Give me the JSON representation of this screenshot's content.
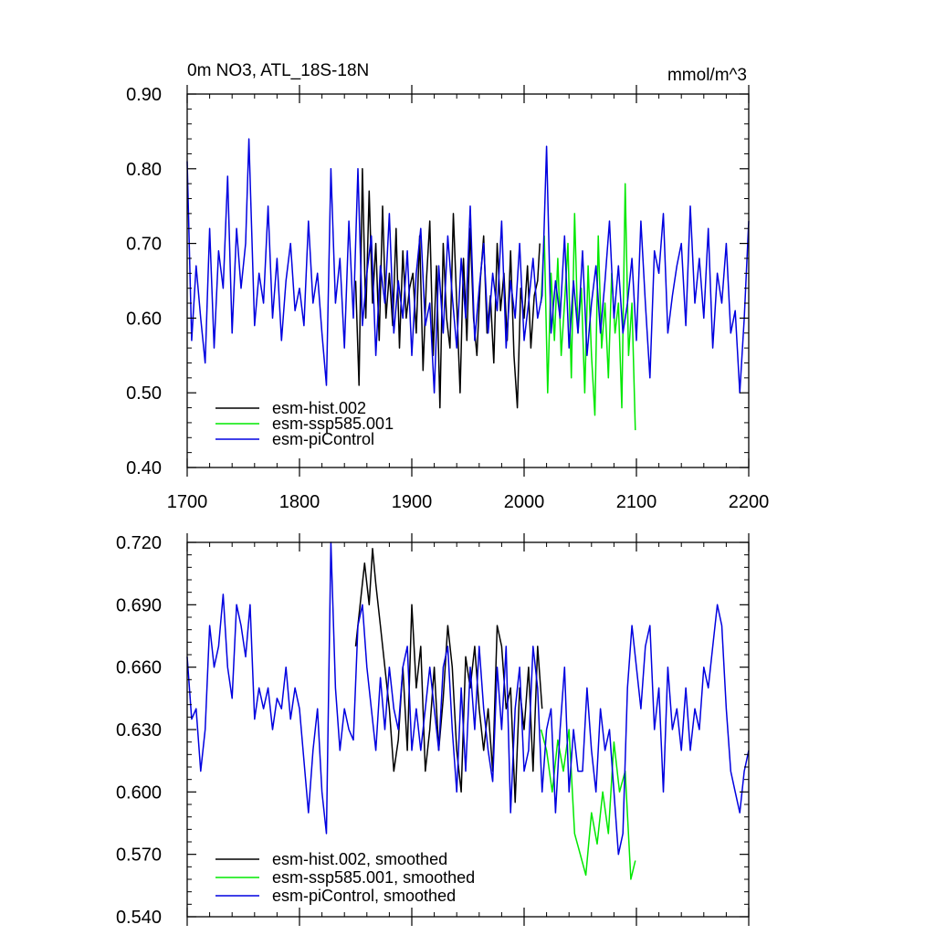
{
  "chart_data": [
    {
      "type": "line",
      "title": "0m NO3, ATL_18S-18N",
      "units": "mmol/m^3",
      "xlabel": "",
      "ylabel": "",
      "xlim": [
        1700,
        2200
      ],
      "ylim": [
        0.4,
        0.9
      ],
      "xticks": [
        "1700",
        "1800",
        "1900",
        "2000",
        "2100",
        "2200"
      ],
      "yticks": [
        "0.40",
        "0.50",
        "0.60",
        "0.70",
        "0.80",
        "0.90"
      ],
      "legend_position": "bottom-left",
      "series": [
        {
          "name": "esm-hist.002",
          "color": "#000000",
          "x": [
            1850,
            1853,
            1856,
            1859,
            1862,
            1865,
            1868,
            1871,
            1874,
            1877,
            1880,
            1883,
            1886,
            1889,
            1892,
            1895,
            1898,
            1901,
            1904,
            1907,
            1910,
            1913,
            1916,
            1919,
            1922,
            1925,
            1928,
            1931,
            1934,
            1937,
            1940,
            1943,
            1946,
            1949,
            1952,
            1955,
            1958,
            1961,
            1964,
            1967,
            1970,
            1973,
            1976,
            1979,
            1982,
            1985,
            1988,
            1991,
            1994,
            1997,
            2000,
            2003,
            2006,
            2009,
            2012,
            2014
          ],
          "y": [
            0.65,
            0.51,
            0.8,
            0.6,
            0.77,
            0.62,
            0.7,
            0.57,
            0.75,
            0.6,
            0.66,
            0.59,
            0.72,
            0.56,
            0.69,
            0.6,
            0.64,
            0.66,
            0.58,
            0.71,
            0.53,
            0.65,
            0.73,
            0.55,
            0.67,
            0.48,
            0.7,
            0.6,
            0.56,
            0.74,
            0.62,
            0.5,
            0.68,
            0.57,
            0.72,
            0.6,
            0.55,
            0.65,
            0.71,
            0.58,
            0.63,
            0.54,
            0.7,
            0.61,
            0.66,
            0.57,
            0.69,
            0.55,
            0.48,
            0.64,
            0.6,
            0.67,
            0.56,
            0.63,
            0.65,
            0.7
          ]
        },
        {
          "name": "esm-ssp585.001",
          "color": "#00e800",
          "x": [
            2015,
            2018,
            2021,
            2024,
            2027,
            2030,
            2033,
            2036,
            2039,
            2042,
            2045,
            2048,
            2051,
            2054,
            2057,
            2060,
            2063,
            2066,
            2069,
            2072,
            2075,
            2078,
            2081,
            2084,
            2087,
            2090,
            2093,
            2096,
            2099
          ],
          "y": [
            0.62,
            0.71,
            0.5,
            0.66,
            0.57,
            0.68,
            0.55,
            0.62,
            0.7,
            0.52,
            0.74,
            0.58,
            0.64,
            0.5,
            0.67,
            0.55,
            0.47,
            0.71,
            0.56,
            0.62,
            0.52,
            0.66,
            0.58,
            0.62,
            0.48,
            0.78,
            0.55,
            0.62,
            0.45
          ]
        },
        {
          "name": "esm-piControl",
          "color": "#0000e0",
          "x": [
            1700,
            1704,
            1708,
            1712,
            1716,
            1720,
            1724,
            1728,
            1732,
            1736,
            1740,
            1744,
            1748,
            1752,
            1755,
            1760,
            1764,
            1768,
            1772,
            1776,
            1780,
            1784,
            1788,
            1792,
            1796,
            1800,
            1804,
            1808,
            1812,
            1816,
            1820,
            1824,
            1828,
            1832,
            1836,
            1840,
            1844,
            1848,
            1852,
            1856,
            1860,
            1864,
            1868,
            1872,
            1876,
            1880,
            1884,
            1888,
            1892,
            1896,
            1900,
            1904,
            1908,
            1912,
            1916,
            1920,
            1924,
            1928,
            1932,
            1936,
            1940,
            1944,
            1948,
            1952,
            1956,
            1960,
            1964,
            1968,
            1972,
            1976,
            1980,
            1984,
            1988,
            1992,
            1996,
            2000,
            2004,
            2008,
            2012,
            2016,
            2020,
            2024,
            2028,
            2032,
            2036,
            2040,
            2044,
            2048,
            2052,
            2056,
            2060,
            2064,
            2068,
            2072,
            2076,
            2080,
            2084,
            2088,
            2092,
            2096,
            2100,
            2104,
            2108,
            2112,
            2116,
            2120,
            2124,
            2128,
            2132,
            2136,
            2140,
            2144,
            2148,
            2152,
            2156,
            2160,
            2164,
            2168,
            2172,
            2176,
            2180,
            2184,
            2188,
            2192,
            2196,
            2200
          ],
          "y": [
            0.81,
            0.57,
            0.67,
            0.6,
            0.54,
            0.72,
            0.56,
            0.69,
            0.64,
            0.79,
            0.58,
            0.72,
            0.64,
            0.7,
            0.84,
            0.59,
            0.66,
            0.62,
            0.75,
            0.6,
            0.68,
            0.57,
            0.65,
            0.7,
            0.61,
            0.64,
            0.59,
            0.73,
            0.62,
            0.66,
            0.58,
            0.51,
            0.8,
            0.62,
            0.68,
            0.56,
            0.73,
            0.6,
            0.8,
            0.59,
            0.66,
            0.71,
            0.55,
            0.67,
            0.62,
            0.74,
            0.58,
            0.65,
            0.6,
            0.69,
            0.55,
            0.66,
            0.72,
            0.59,
            0.62,
            0.5,
            0.67,
            0.58,
            0.71,
            0.63,
            0.56,
            0.68,
            0.6,
            0.75,
            0.57,
            0.64,
            0.7,
            0.58,
            0.66,
            0.61,
            0.73,
            0.56,
            0.65,
            0.6,
            0.7,
            0.57,
            0.62,
            0.68,
            0.6,
            0.63,
            0.83,
            0.58,
            0.65,
            0.6,
            0.71,
            0.56,
            0.65,
            0.58,
            0.69,
            0.55,
            0.62,
            0.67,
            0.58,
            0.65,
            0.73,
            0.6,
            0.67,
            0.58,
            0.62,
            0.68,
            0.57,
            0.73,
            0.62,
            0.52,
            0.69,
            0.66,
            0.74,
            0.58,
            0.63,
            0.67,
            0.7,
            0.59,
            0.75,
            0.62,
            0.68,
            0.6,
            0.72,
            0.56,
            0.66,
            0.62,
            0.7,
            0.58,
            0.61,
            0.5,
            0.6,
            0.73
          ]
        }
      ]
    },
    {
      "type": "line",
      "title": "",
      "xlabel": "",
      "ylabel": "",
      "xlim": [
        1700,
        2200
      ],
      "ylim": [
        0.54,
        0.72
      ],
      "yticks": [
        "0.540",
        "0.570",
        "0.600",
        "0.630",
        "0.660",
        "0.690",
        "0.720"
      ],
      "legend_position": "bottom-left",
      "series": [
        {
          "name": "esm-hist.002, smoothed",
          "color": "#000000",
          "x": [
            1850,
            1854,
            1858,
            1862,
            1865,
            1868,
            1872,
            1876,
            1880,
            1884,
            1888,
            1892,
            1896,
            1900,
            1904,
            1908,
            1912,
            1916,
            1920,
            1924,
            1928,
            1932,
            1936,
            1940,
            1944,
            1948,
            1952,
            1956,
            1960,
            1964,
            1968,
            1972,
            1976,
            1980,
            1984,
            1988,
            1992,
            1996,
            2000,
            2004,
            2008,
            2012,
            2016
          ],
          "y": [
            0.67,
            0.69,
            0.71,
            0.69,
            0.717,
            0.7,
            0.68,
            0.66,
            0.64,
            0.61,
            0.625,
            0.66,
            0.62,
            0.69,
            0.65,
            0.67,
            0.61,
            0.63,
            0.66,
            0.62,
            0.645,
            0.68,
            0.66,
            0.62,
            0.6,
            0.665,
            0.65,
            0.67,
            0.64,
            0.62,
            0.64,
            0.61,
            0.68,
            0.67,
            0.64,
            0.65,
            0.595,
            0.65,
            0.63,
            0.66,
            0.61,
            0.67,
            0.64
          ]
        },
        {
          "name": "esm-ssp585.001, smoothed",
          "color": "#00e800",
          "x": [
            2015,
            2020,
            2025,
            2030,
            2035,
            2040,
            2045,
            2050,
            2055,
            2060,
            2065,
            2070,
            2075,
            2080,
            2085,
            2090,
            2095,
            2099
          ],
          "y": [
            0.63,
            0.62,
            0.6,
            0.625,
            0.61,
            0.63,
            0.58,
            0.57,
            0.56,
            0.59,
            0.575,
            0.6,
            0.58,
            0.624,
            0.6,
            0.61,
            0.558,
            0.567
          ]
        },
        {
          "name": "esm-piControl, smoothed",
          "color": "#0000e0",
          "x": [
            1700,
            1704,
            1708,
            1712,
            1716,
            1720,
            1724,
            1728,
            1732,
            1736,
            1740,
            1744,
            1748,
            1752,
            1756,
            1760,
            1764,
            1768,
            1772,
            1776,
            1780,
            1784,
            1788,
            1792,
            1796,
            1800,
            1804,
            1808,
            1812,
            1816,
            1820,
            1824,
            1828,
            1832,
            1836,
            1840,
            1844,
            1848,
            1852,
            1856,
            1860,
            1864,
            1868,
            1872,
            1876,
            1880,
            1884,
            1888,
            1892,
            1896,
            1900,
            1904,
            1908,
            1912,
            1916,
            1920,
            1924,
            1928,
            1932,
            1936,
            1940,
            1944,
            1948,
            1952,
            1956,
            1960,
            1964,
            1968,
            1972,
            1976,
            1980,
            1984,
            1988,
            1992,
            1996,
            2000,
            2004,
            2008,
            2012,
            2016,
            2020,
            2024,
            2028,
            2032,
            2036,
            2040,
            2044,
            2048,
            2052,
            2056,
            2060,
            2064,
            2068,
            2072,
            2076,
            2080,
            2084,
            2088,
            2092,
            2096,
            2100,
            2104,
            2108,
            2112,
            2116,
            2120,
            2124,
            2128,
            2132,
            2136,
            2140,
            2144,
            2148,
            2152,
            2156,
            2160,
            2164,
            2168,
            2172,
            2176,
            2180,
            2184,
            2188,
            2192,
            2196,
            2200
          ],
          "y": [
            0.665,
            0.635,
            0.64,
            0.61,
            0.63,
            0.68,
            0.66,
            0.67,
            0.695,
            0.66,
            0.645,
            0.69,
            0.68,
            0.665,
            0.69,
            0.635,
            0.65,
            0.64,
            0.65,
            0.63,
            0.645,
            0.64,
            0.66,
            0.635,
            0.65,
            0.64,
            0.615,
            0.59,
            0.62,
            0.64,
            0.6,
            0.58,
            0.72,
            0.65,
            0.62,
            0.64,
            0.63,
            0.625,
            0.68,
            0.69,
            0.66,
            0.64,
            0.62,
            0.655,
            0.63,
            0.66,
            0.64,
            0.63,
            0.66,
            0.67,
            0.62,
            0.64,
            0.62,
            0.64,
            0.66,
            0.64,
            0.62,
            0.66,
            0.67,
            0.63,
            0.6,
            0.65,
            0.61,
            0.66,
            0.63,
            0.67,
            0.64,
            0.62,
            0.605,
            0.66,
            0.63,
            0.67,
            0.59,
            0.64,
            0.66,
            0.61,
            0.62,
            0.67,
            0.65,
            0.6,
            0.63,
            0.64,
            0.59,
            0.63,
            0.66,
            0.6,
            0.63,
            0.61,
            0.61,
            0.65,
            0.62,
            0.6,
            0.64,
            0.62,
            0.63,
            0.6,
            0.57,
            0.58,
            0.65,
            0.68,
            0.66,
            0.64,
            0.67,
            0.68,
            0.63,
            0.65,
            0.6,
            0.66,
            0.63,
            0.64,
            0.62,
            0.65,
            0.62,
            0.64,
            0.63,
            0.66,
            0.65,
            0.67,
            0.69,
            0.68,
            0.64,
            0.61,
            0.6,
            0.59,
            0.61,
            0.62
          ]
        }
      ]
    }
  ]
}
